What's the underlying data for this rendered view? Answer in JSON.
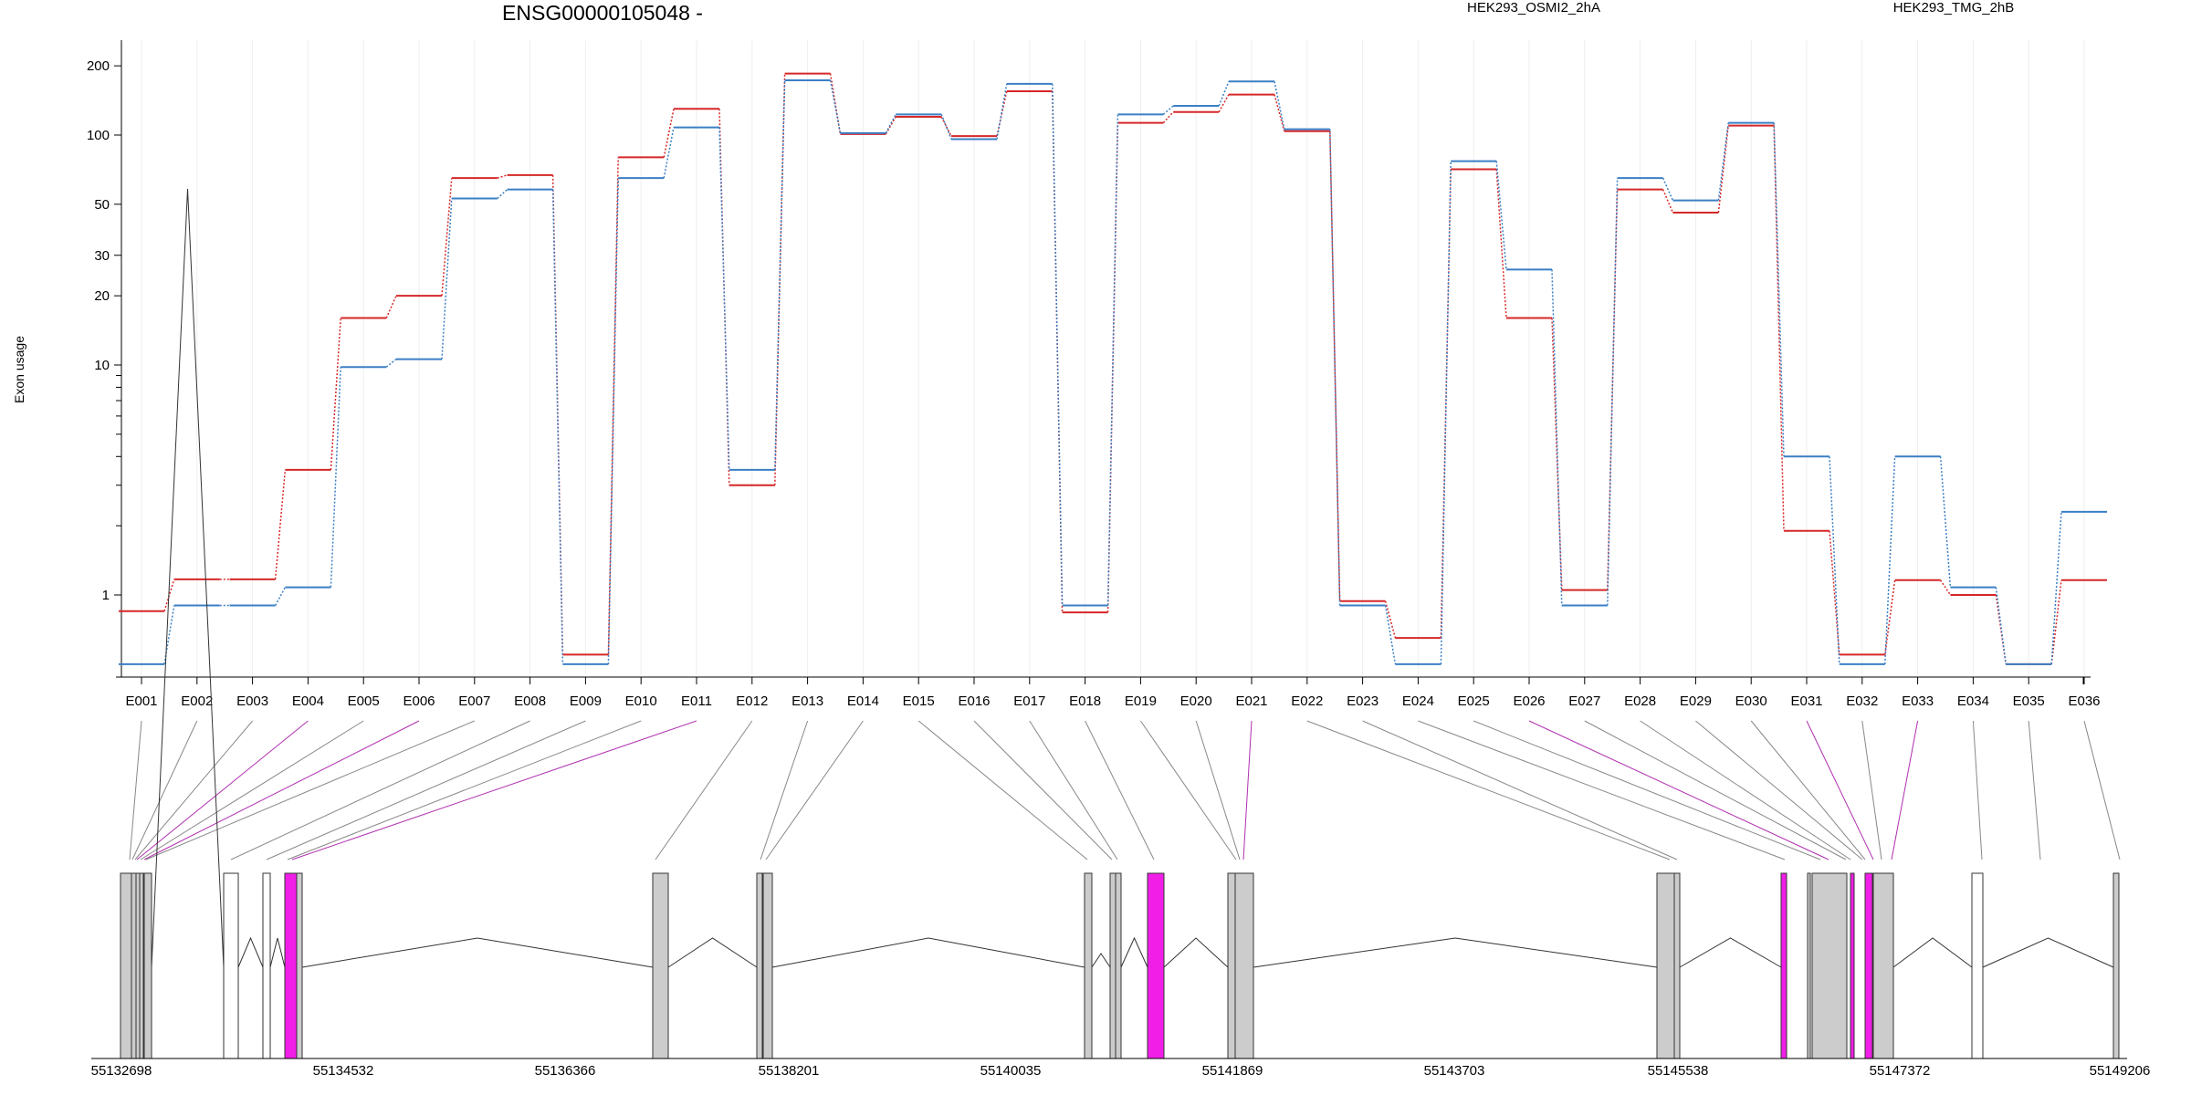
{
  "chart_data": {
    "type": "line",
    "title": "ENSG00000105048 -",
    "ylabel": "Exon usage",
    "yscale": "log",
    "ylim": [
      0.45,
      240
    ],
    "yticks": [
      1,
      10,
      20,
      30,
      50,
      100,
      200
    ],
    "grid": "vertical",
    "legend": "top",
    "categories": [
      "E001",
      "E002",
      "E003",
      "E004",
      "E005",
      "E006",
      "E007",
      "E008",
      "E009",
      "E010",
      "E011",
      "E012",
      "E013",
      "E014",
      "E015",
      "E016",
      "E017",
      "E018",
      "E019",
      "E020",
      "E021",
      "E022",
      "E023",
      "E024",
      "E025",
      "E026",
      "E027",
      "E028",
      "E029",
      "E030",
      "E031",
      "E032",
      "E033",
      "E034",
      "E035",
      "E036"
    ],
    "series": [
      {
        "name": "HEK293_OSMI2_2hA",
        "color": "#d62728",
        "values": [
          0.85,
          1.17,
          1.17,
          3.5,
          16,
          20,
          65,
          67,
          0.55,
          80,
          130,
          3.0,
          185,
          101,
          120,
          99,
          155,
          0.84,
          113,
          126,
          150,
          104,
          0.94,
          0.65,
          71,
          16,
          1.05,
          58,
          46,
          110,
          1.9,
          0.55,
          1.16,
          1.0,
          0.5,
          1.16
        ]
      },
      {
        "name": "HEK293_TMG_2hB",
        "color": "#3b7fc4",
        "values": [
          0.5,
          0.9,
          0.9,
          1.08,
          9.8,
          10.6,
          53,
          58,
          0.5,
          65,
          108,
          3.5,
          173,
          102,
          123,
          96,
          167,
          0.9,
          123,
          134,
          171,
          106,
          0.9,
          0.5,
          77,
          26,
          0.9,
          65,
          52,
          113,
          4.0,
          0.5,
          4.0,
          1.08,
          0.5,
          2.3
        ]
      }
    ],
    "genome_axis": {
      "ticks": [
        "55132698",
        "55134532",
        "55136366",
        "55138201",
        "55140035",
        "55141869",
        "55143703",
        "55145538",
        "55147372",
        "55149206"
      ]
    },
    "gene_model": {
      "highlight_color": "#f01ee6",
      "exon_color": "#cccccc",
      "highlighted_exons": [
        "E004",
        "E006",
        "E011",
        "E021",
        "E026",
        "E031",
        "E033"
      ]
    }
  }
}
